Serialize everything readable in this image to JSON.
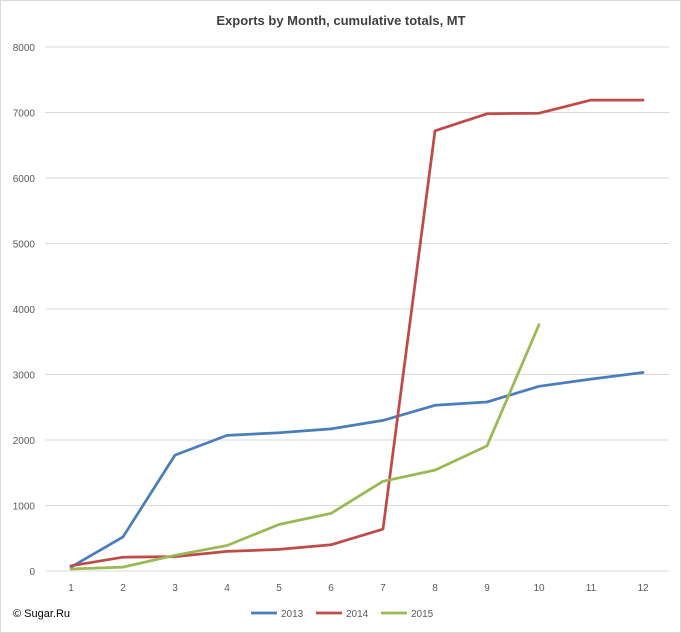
{
  "chart_data": {
    "type": "line",
    "title": "Exports by Month, cumulative totals, MT",
    "xlabel": "",
    "ylabel": "",
    "x": [
      1,
      2,
      3,
      4,
      5,
      6,
      7,
      8,
      9,
      10,
      11,
      12
    ],
    "xlim": [
      1,
      12
    ],
    "ylim": [
      0,
      8000
    ],
    "yticks": [
      0,
      1000,
      2000,
      3000,
      4000,
      5000,
      6000,
      7000,
      8000
    ],
    "grid": true,
    "legend_position": "bottom",
    "series": [
      {
        "name": "2013",
        "color": "#4a7ebb",
        "values": [
          60,
          520,
          1770,
          2070,
          2110,
          2170,
          2300,
          2530,
          2580,
          2820,
          2930,
          3030
        ]
      },
      {
        "name": "2014",
        "color": "#be4b48",
        "values": [
          80,
          210,
          220,
          300,
          330,
          400,
          640,
          6720,
          6980,
          6990,
          7190,
          7190
        ]
      },
      {
        "name": "2015",
        "color": "#98b954",
        "values": [
          30,
          60,
          240,
          390,
          710,
          880,
          1370,
          1540,
          1910,
          3760,
          null,
          null
        ]
      }
    ]
  },
  "footer": {
    "copyright": "© Sugar.Ru"
  }
}
